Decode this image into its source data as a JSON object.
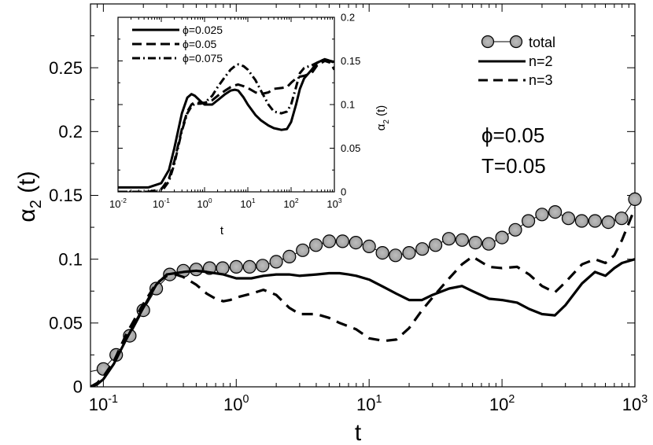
{
  "chart_data": [
    {
      "type": "line",
      "xscale": "log",
      "xlim": [
        0.08,
        1000
      ],
      "ylim": [
        0,
        0.3
      ],
      "xlabel": "t",
      "ylabel": "α2 (t)",
      "ylabel_main": "α",
      "ylabel_sub": "2",
      "ylabel_rest": " (t)",
      "xticks": [
        {
          "value": 0.1,
          "base": "10",
          "exp": "-1"
        },
        {
          "value": 1,
          "base": "10",
          "exp": "0"
        },
        {
          "value": 10,
          "base": "10",
          "exp": "1"
        },
        {
          "value": 100,
          "base": "10",
          "exp": "2"
        },
        {
          "value": 1000,
          "base": "10",
          "exp": "3"
        }
      ],
      "yticks": [
        {
          "value": 0,
          "label": "0"
        },
        {
          "value": 0.05,
          "label": "0.05"
        },
        {
          "value": 0.1,
          "label": "0.1"
        },
        {
          "value": 0.15,
          "label": "0.15"
        },
        {
          "value": 0.2,
          "label": "0.2"
        },
        {
          "value": 0.25,
          "label": "0.25"
        }
      ],
      "annotations": [
        "ϕ=0.05",
        "T=0.05"
      ],
      "legend_position": "top-right",
      "series": [
        {
          "name": "total",
          "style": "circles",
          "x": [
            0.08,
            0.1,
            0.125,
            0.158,
            0.2,
            0.25,
            0.316,
            0.4,
            0.5,
            0.63,
            0.79,
            1.0,
            1.26,
            1.58,
            2.0,
            2.51,
            3.16,
            3.98,
            5.01,
            6.31,
            7.94,
            10,
            12.6,
            15.8,
            20,
            25.1,
            31.6,
            39.8,
            50.1,
            63.1,
            79.4,
            100,
            126,
            158,
            200,
            251,
            316,
            398,
            501,
            631,
            794,
            1000
          ],
          "y": [
            0.012,
            0.014,
            0.025,
            0.04,
            0.06,
            0.077,
            0.088,
            0.091,
            0.092,
            0.093,
            0.093,
            0.094,
            0.094,
            0.095,
            0.098,
            0.102,
            0.107,
            0.111,
            0.114,
            0.114,
            0.113,
            0.11,
            0.105,
            0.103,
            0.105,
            0.108,
            0.111,
            0.116,
            0.115,
            0.113,
            0.112,
            0.117,
            0.123,
            0.13,
            0.135,
            0.137,
            0.132,
            0.13,
            0.13,
            0.129,
            0.132,
            0.147
          ],
          "marker_x": [
            0.1,
            0.125,
            0.158,
            0.2,
            0.25,
            0.316,
            0.4,
            0.5,
            0.63,
            0.79,
            1.0,
            1.26,
            1.58,
            2.0,
            2.51,
            3.16,
            3.98,
            5.01,
            6.31,
            7.94,
            10,
            12.6,
            15.8,
            20,
            25.1,
            31.6,
            39.8,
            50.1,
            63.1,
            79.4,
            100,
            126,
            158,
            200,
            251,
            316,
            398,
            501,
            631,
            794,
            1000
          ]
        },
        {
          "name": "n=2",
          "style": "solid",
          "x": [
            0.08,
            0.09,
            0.1,
            0.12,
            0.15,
            0.2,
            0.25,
            0.3,
            0.4,
            0.5,
            0.6,
            0.8,
            1.0,
            1.3,
            1.6,
            2.0,
            2.5,
            3.0,
            4.0,
            5.0,
            6.0,
            7.0,
            8.0,
            10,
            13,
            16,
            20,
            25,
            30,
            40,
            50,
            60,
            80,
            100,
            130,
            160,
            200,
            250,
            300,
            400,
            500,
            600,
            700,
            800,
            1000
          ],
          "y": [
            0.0,
            0.002,
            0.006,
            0.018,
            0.038,
            0.062,
            0.08,
            0.088,
            0.09,
            0.091,
            0.09,
            0.088,
            0.085,
            0.085,
            0.087,
            0.088,
            0.088,
            0.087,
            0.088,
            0.089,
            0.089,
            0.088,
            0.087,
            0.084,
            0.078,
            0.073,
            0.068,
            0.068,
            0.072,
            0.077,
            0.079,
            0.075,
            0.069,
            0.068,
            0.066,
            0.061,
            0.057,
            0.056,
            0.064,
            0.081,
            0.09,
            0.087,
            0.093,
            0.097,
            0.1
          ]
        },
        {
          "name": "n=3",
          "style": "dashed",
          "x": [
            0.08,
            0.09,
            0.1,
            0.12,
            0.15,
            0.2,
            0.25,
            0.3,
            0.35,
            0.4,
            0.5,
            0.6,
            0.7,
            0.8,
            0.9,
            1.0,
            1.3,
            1.6,
            2.0,
            2.5,
            3.0,
            4.0,
            5.0,
            6.0,
            8.0,
            10,
            13,
            16,
            20,
            25,
            30,
            40,
            50,
            60,
            80,
            100,
            130,
            160,
            200,
            250,
            300,
            400,
            500,
            600,
            700,
            800,
            1000
          ],
          "y": [
            0.0,
            0.003,
            0.008,
            0.02,
            0.042,
            0.065,
            0.081,
            0.087,
            0.088,
            0.086,
            0.08,
            0.073,
            0.069,
            0.067,
            0.068,
            0.07,
            0.073,
            0.076,
            0.072,
            0.062,
            0.057,
            0.057,
            0.054,
            0.05,
            0.045,
            0.038,
            0.036,
            0.037,
            0.046,
            0.06,
            0.07,
            0.085,
            0.096,
            0.102,
            0.094,
            0.093,
            0.094,
            0.088,
            0.079,
            0.074,
            0.082,
            0.096,
            0.1,
            0.097,
            0.103,
            0.115,
            0.14
          ]
        }
      ]
    },
    {
      "type": "line",
      "role": "inset",
      "xscale": "log",
      "xlim": [
        0.01,
        1000
      ],
      "ylim": [
        0,
        0.2
      ],
      "xlabel": "t",
      "ylabel": "α2 (t)",
      "ylabel_main": "α",
      "ylabel_sub": "2",
      "ylabel_rest": " (t)",
      "y_axis_side": "right",
      "xticks": [
        {
          "value": 0.01,
          "base": "10",
          "exp": "-2"
        },
        {
          "value": 0.1,
          "base": "10",
          "exp": "-1"
        },
        {
          "value": 1,
          "base": "10",
          "exp": "0"
        },
        {
          "value": 10,
          "base": "10",
          "exp": "1"
        },
        {
          "value": 100,
          "base": "10",
          "exp": "2"
        },
        {
          "value": 1000,
          "base": "10",
          "exp": "3"
        }
      ],
      "yticks": [
        {
          "value": 0,
          "label": "0"
        },
        {
          "value": 0.05,
          "label": "0.05"
        },
        {
          "value": 0.1,
          "label": "0.1"
        },
        {
          "value": 0.15,
          "label": "0.15"
        },
        {
          "value": 0.2,
          "label": "0.2"
        }
      ],
      "legend_position": "top-left",
      "series": [
        {
          "name": "ϕ=0.025",
          "style": "solid",
          "x": [
            0.01,
            0.05,
            0.1,
            0.15,
            0.2,
            0.3,
            0.4,
            0.5,
            0.6,
            0.8,
            1.0,
            1.5,
            2.0,
            3.0,
            4.0,
            5.0,
            6.0,
            8.0,
            10,
            15,
            20,
            30,
            40,
            60,
            80,
            100,
            130,
            160,
            200,
            300,
            400,
            600,
            800,
            1000
          ],
          "y": [
            0.005,
            0.005,
            0.01,
            0.025,
            0.05,
            0.09,
            0.108,
            0.112,
            0.11,
            0.104,
            0.1,
            0.1,
            0.105,
            0.112,
            0.116,
            0.117,
            0.116,
            0.108,
            0.1,
            0.088,
            0.082,
            0.076,
            0.073,
            0.071,
            0.072,
            0.08,
            0.1,
            0.118,
            0.13,
            0.14,
            0.148,
            0.152,
            0.15,
            0.149
          ]
        },
        {
          "name": "ϕ=0.05",
          "style": "dashed",
          "x": [
            0.01,
            0.05,
            0.1,
            0.15,
            0.2,
            0.3,
            0.4,
            0.5,
            0.6,
            0.8,
            1.0,
            1.5,
            2.0,
            3.0,
            4.0,
            5.0,
            6.0,
            8.0,
            10,
            15,
            20,
            30,
            40,
            60,
            80,
            100,
            130,
            160,
            200,
            300,
            400,
            600,
            800,
            1000
          ],
          "y": [
            0.0,
            0.0,
            0.003,
            0.015,
            0.035,
            0.072,
            0.092,
            0.1,
            0.103,
            0.102,
            0.102,
            0.105,
            0.11,
            0.116,
            0.12,
            0.122,
            0.123,
            0.121,
            0.119,
            0.114,
            0.112,
            0.114,
            0.118,
            0.119,
            0.12,
            0.125,
            0.13,
            0.132,
            0.133,
            0.136,
            0.145,
            0.15,
            0.148,
            0.14
          ]
        },
        {
          "name": "ϕ=0.075",
          "style": "dashdot",
          "x": [
            0.01,
            0.05,
            0.1,
            0.15,
            0.2,
            0.3,
            0.4,
            0.5,
            0.6,
            0.8,
            1.0,
            1.5,
            2.0,
            3.0,
            4.0,
            5.0,
            6.0,
            8.0,
            10,
            15,
            20,
            30,
            40,
            60,
            80,
            100,
            130,
            160,
            200,
            300,
            400,
            600,
            800,
            1000
          ],
          "y": [
            0.0,
            0.0,
            0.0,
            0.012,
            0.032,
            0.07,
            0.09,
            0.098,
            0.101,
            0.101,
            0.102,
            0.11,
            0.12,
            0.132,
            0.14,
            0.144,
            0.146,
            0.144,
            0.14,
            0.128,
            0.116,
            0.1,
            0.092,
            0.09,
            0.092,
            0.1,
            0.12,
            0.136,
            0.142,
            0.145,
            0.148,
            0.152,
            0.15,
            0.148
          ]
        }
      ]
    }
  ]
}
